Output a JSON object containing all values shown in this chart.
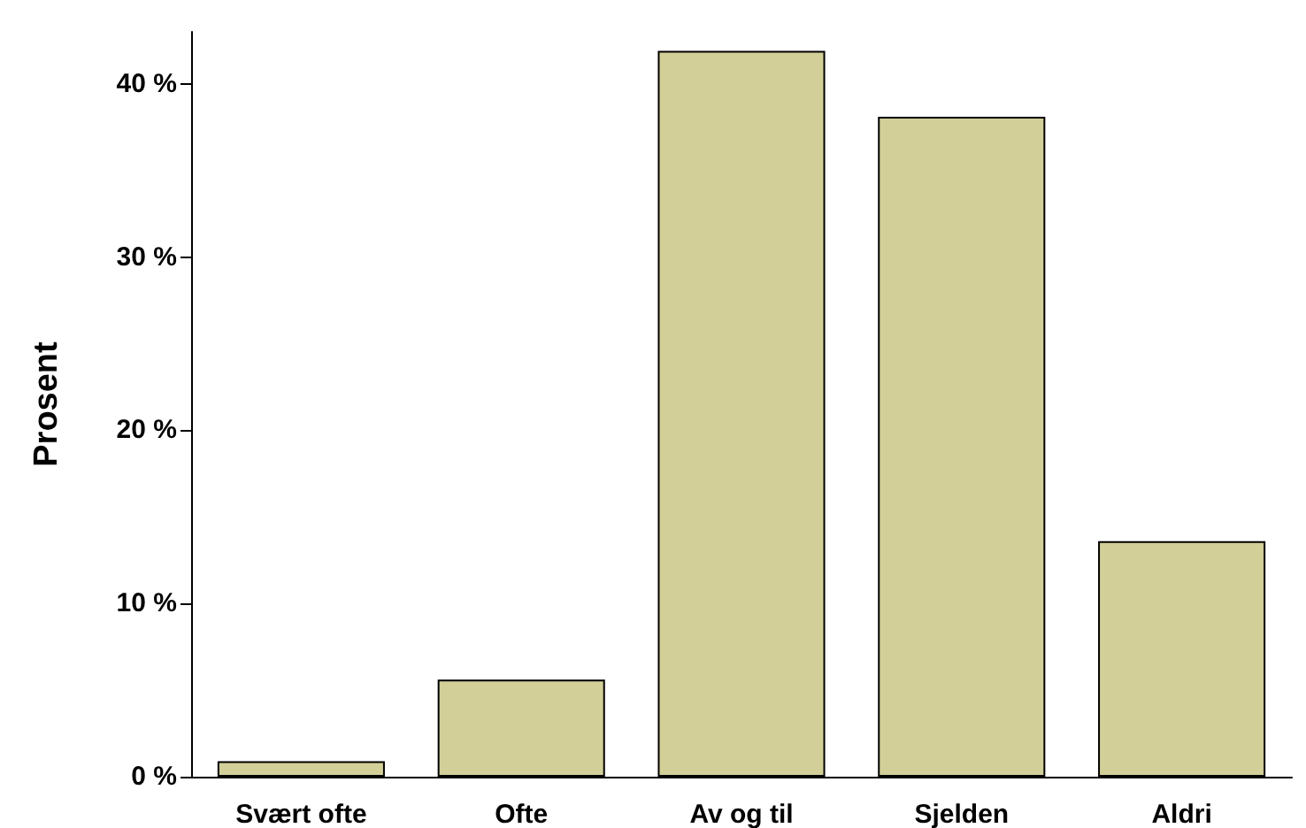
{
  "chart_data": {
    "type": "bar",
    "ylabel": "Prosent",
    "categories": [
      "Svært ofte",
      "Ofte",
      "Av og til",
      "Sjelden",
      "Aldri"
    ],
    "values": [
      0.9,
      5.6,
      41.9,
      38.1,
      13.6
    ],
    "color": "#d3cf98",
    "ylim": [
      0,
      43
    ],
    "yticks": [
      {
        "value": 0,
        "label": "0 %"
      },
      {
        "value": 10,
        "label": "10 %"
      },
      {
        "value": 20,
        "label": "20 %"
      },
      {
        "value": 30,
        "label": "30 %"
      },
      {
        "value": 40,
        "label": "40 %"
      }
    ],
    "grid": false
  }
}
